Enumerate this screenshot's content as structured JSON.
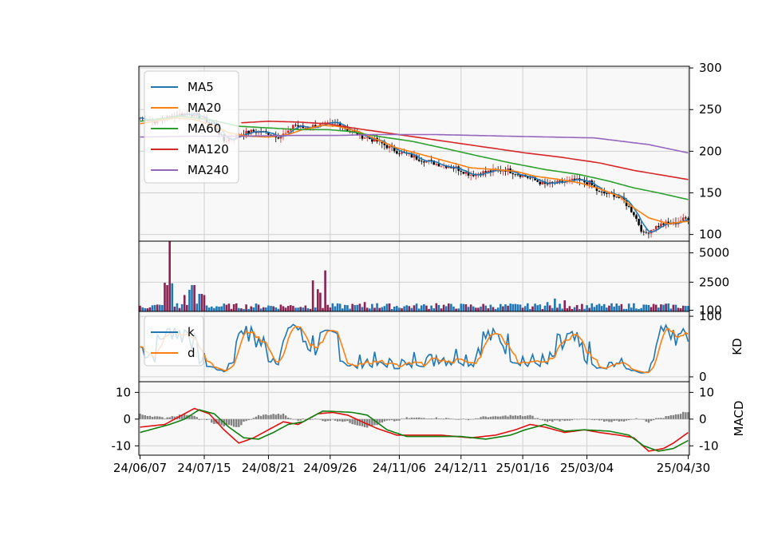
{
  "colors": {
    "MA5": "#1f77b4",
    "MA20": "#ff7f0e",
    "MA60": "#2ca02c",
    "MA120": "#d62728",
    "MA240": "#9467bd",
    "k": "#1f77b4",
    "d": "#ff7f0e",
    "dif": "#e01010",
    "dea": "#108010",
    "up": "#d62728",
    "down": "#000000",
    "vol_up": "#8b2252",
    "vol_down": "#1f77b4",
    "hist": "#808080",
    "panel_bg": "#f8f8f8",
    "grid": "#d0d0d0"
  },
  "chart_data": {
    "type": "candlestick",
    "x_tick_labels": [
      "24/06/07",
      "24/07/15",
      "24/08/21",
      "24/09/26",
      "24/11/06",
      "24/12/11",
      "25/01/16",
      "25/03/04",
      "25/04/30"
    ],
    "price_panel": {
      "yticks": [
        100,
        150,
        200,
        250,
        300
      ],
      "ylim": [
        92,
        302
      ],
      "legend": [
        "MA5",
        "MA20",
        "MA60",
        "MA120",
        "MA240"
      ],
      "legend_location": "upper-left",
      "close_anchors": [
        [
          0,
          240
        ],
        [
          6,
          236
        ],
        [
          14,
          243
        ],
        [
          20,
          246
        ],
        [
          26,
          238
        ],
        [
          30,
          232
        ],
        [
          34,
          212
        ],
        [
          40,
          220
        ],
        [
          46,
          224
        ],
        [
          52,
          222
        ],
        [
          56,
          218
        ],
        [
          60,
          222
        ],
        [
          62,
          232
        ],
        [
          66,
          228
        ],
        [
          70,
          230
        ],
        [
          76,
          232
        ],
        [
          80,
          234
        ],
        [
          84,
          226
        ],
        [
          90,
          218
        ],
        [
          96,
          212
        ],
        [
          104,
          200
        ],
        [
          112,
          192
        ],
        [
          120,
          185
        ],
        [
          128,
          180
        ],
        [
          134,
          172
        ],
        [
          140,
          175
        ],
        [
          148,
          178
        ],
        [
          156,
          170
        ],
        [
          164,
          160
        ],
        [
          170,
          162
        ],
        [
          176,
          165
        ],
        [
          182,
          162
        ],
        [
          186,
          150
        ],
        [
          192,
          148
        ],
        [
          196,
          140
        ],
        [
          200,
          125
        ],
        [
          204,
          100
        ],
        [
          208,
          108
        ],
        [
          212,
          113
        ],
        [
          216,
          113
        ],
        [
          219,
          117
        ],
        [
          222,
          120
        ]
      ],
      "ma_anchors": {
        "MA20": [
          [
            0,
            233
          ],
          [
            14,
            240
          ],
          [
            22,
            238
          ],
          [
            30,
            230
          ],
          [
            36,
            222
          ],
          [
            44,
            218
          ],
          [
            52,
            217
          ],
          [
            60,
            220
          ],
          [
            66,
            226
          ],
          [
            74,
            231
          ],
          [
            80,
            230
          ],
          [
            88,
            224
          ],
          [
            96,
            214
          ],
          [
            104,
            204
          ],
          [
            114,
            196
          ],
          [
            124,
            188
          ],
          [
            134,
            180
          ],
          [
            144,
            178
          ],
          [
            152,
            176
          ],
          [
            160,
            170
          ],
          [
            170,
            166
          ],
          [
            178,
            162
          ],
          [
            186,
            155
          ],
          [
            194,
            146
          ],
          [
            200,
            132
          ],
          [
            206,
            120
          ],
          [
            214,
            113
          ],
          [
            222,
            116
          ]
        ],
        "MA60": [
          [
            0,
            236
          ],
          [
            16,
            242
          ],
          [
            28,
            238
          ],
          [
            40,
            230
          ],
          [
            52,
            228
          ],
          [
            64,
            226
          ],
          [
            76,
            226
          ],
          [
            84,
            224
          ],
          [
            96,
            218
          ],
          [
            110,
            212
          ],
          [
            124,
            203
          ],
          [
            136,
            195
          ],
          [
            150,
            186
          ],
          [
            164,
            178
          ],
          [
            178,
            172
          ],
          [
            190,
            164
          ],
          [
            200,
            156
          ],
          [
            210,
            150
          ],
          [
            222,
            142
          ]
        ],
        "MA120": [
          [
            40,
            234
          ],
          [
            52,
            236
          ],
          [
            64,
            235
          ],
          [
            76,
            233
          ],
          [
            86,
            228
          ],
          [
            100,
            222
          ],
          [
            114,
            216
          ],
          [
            128,
            210
          ],
          [
            142,
            204
          ],
          [
            156,
            198
          ],
          [
            170,
            193
          ],
          [
            186,
            186
          ],
          [
            200,
            177
          ],
          [
            222,
            166
          ]
        ],
        "MA240": [
          [
            0,
            217
          ],
          [
            20,
            218
          ],
          [
            40,
            218
          ],
          [
            64,
            219
          ],
          [
            80,
            219
          ],
          [
            96,
            220
          ],
          [
            120,
            220
          ],
          [
            150,
            218
          ],
          [
            184,
            216
          ],
          [
            206,
            208
          ],
          [
            222,
            198
          ]
        ]
      }
    },
    "volume_panel": {
      "yticks": [
        100,
        2500,
        5000
      ],
      "ylim": [
        0,
        6000
      ],
      "spikes": [
        [
          10,
          2450
        ],
        [
          11,
          2250
        ],
        [
          12,
          6000
        ],
        [
          13,
          2400
        ],
        [
          15,
          700
        ],
        [
          18,
          1400
        ],
        [
          20,
          1850
        ],
        [
          21,
          2250
        ],
        [
          22,
          2250
        ],
        [
          24,
          1500
        ],
        [
          25,
          1500
        ],
        [
          26,
          1400
        ],
        [
          70,
          2650
        ],
        [
          72,
          1900
        ],
        [
          73,
          2250
        ],
        [
          75,
          3500
        ],
        [
          73,
          1600
        ],
        [
          91,
          800
        ],
        [
          96,
          700
        ],
        [
          120,
          700
        ],
        [
          162,
          600
        ],
        [
          165,
          800
        ],
        [
          168,
          1100
        ],
        [
          172,
          950
        ],
        [
          200,
          700
        ]
      ]
    },
    "kd_panel": {
      "ylabel": "KD",
      "yticks": [
        0,
        100
      ],
      "ylim": [
        -8,
        108
      ],
      "legend": [
        "k",
        "d"
      ],
      "legend_location": "upper-left"
    },
    "macd_panel": {
      "ylabel": "MACD",
      "yticks": [
        -10,
        0,
        10
      ],
      "ylim": [
        -13.5,
        14
      ],
      "dif_anchors": [
        [
          0,
          -3
        ],
        [
          10,
          -2
        ],
        [
          16,
          1
        ],
        [
          22,
          4
        ],
        [
          28,
          2
        ],
        [
          34,
          -4
        ],
        [
          40,
          -9
        ],
        [
          46,
          -7
        ],
        [
          52,
          -4
        ],
        [
          58,
          -1
        ],
        [
          64,
          -2
        ],
        [
          72,
          2
        ],
        [
          78,
          2.5
        ],
        [
          84,
          1.5
        ],
        [
          90,
          -1
        ],
        [
          96,
          -3.5
        ],
        [
          104,
          -6
        ],
        [
          112,
          -6
        ],
        [
          122,
          -6
        ],
        [
          134,
          -7
        ],
        [
          144,
          -6
        ],
        [
          152,
          -4
        ],
        [
          158,
          -2
        ],
        [
          164,
          -3
        ],
        [
          172,
          -5
        ],
        [
          180,
          -4
        ],
        [
          186,
          -5
        ],
        [
          194,
          -6
        ],
        [
          200,
          -7
        ],
        [
          206,
          -12
        ],
        [
          212,
          -11
        ],
        [
          216,
          -9
        ],
        [
          222,
          -5
        ]
      ],
      "dea_anchors": [
        [
          0,
          -5
        ],
        [
          12,
          -2
        ],
        [
          18,
          0
        ],
        [
          24,
          3.5
        ],
        [
          30,
          2
        ],
        [
          36,
          -3
        ],
        [
          42,
          -7
        ],
        [
          48,
          -7.5
        ],
        [
          54,
          -5
        ],
        [
          60,
          -2
        ],
        [
          66,
          -1
        ],
        [
          74,
          3
        ],
        [
          80,
          2.8
        ],
        [
          86,
          2.5
        ],
        [
          92,
          1.5
        ],
        [
          100,
          -4
        ],
        [
          108,
          -6.5
        ],
        [
          118,
          -6.5
        ],
        [
          130,
          -6.5
        ],
        [
          140,
          -7.5
        ],
        [
          150,
          -6
        ],
        [
          156,
          -4
        ],
        [
          164,
          -2
        ],
        [
          172,
          -4.5
        ],
        [
          180,
          -4
        ],
        [
          190,
          -4.5
        ],
        [
          198,
          -6
        ],
        [
          204,
          -10
        ],
        [
          210,
          -12
        ],
        [
          216,
          -11
        ],
        [
          222,
          -8
        ]
      ]
    }
  }
}
